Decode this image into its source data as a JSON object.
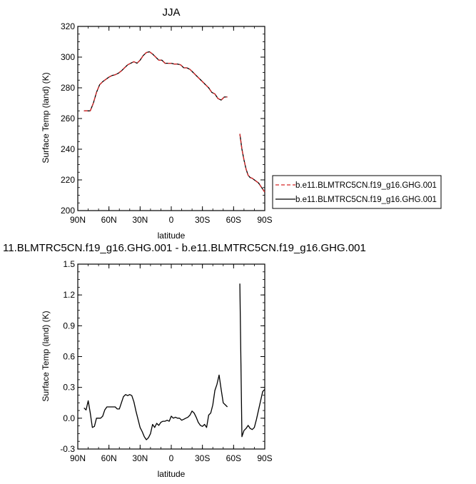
{
  "chart_data": [
    {
      "type": "line",
      "title": "JJA",
      "xlabel": "latitude",
      "ylabel": "Surface Temp (land) (K)",
      "x_direction": "90N on the left to 90S on the right",
      "xlim": [
        90,
        -90
      ],
      "ylim": [
        200,
        320
      ],
      "x_ticks": [
        90,
        60,
        30,
        0,
        -30,
        -60,
        -90
      ],
      "x_tick_labels": [
        "90N",
        "60N",
        "30N",
        "0",
        "30S",
        "60S",
        "90S"
      ],
      "y_ticks": [
        200,
        220,
        240,
        260,
        280,
        300,
        320
      ],
      "y_tick_labels": [
        "200",
        "220",
        "240",
        "260",
        "280",
        "300",
        "320"
      ],
      "legend_position": "right",
      "series": [
        {
          "name": "b.e11.BLMTRC5CN.f19_g16.GHG.001",
          "color": "#d62728",
          "dash": "dashed",
          "segments": [
            {
              "x": [
                84,
                81,
                78,
                75,
                72,
                69,
                66,
                63,
                60,
                57,
                54,
                51,
                48,
                45,
                42,
                39,
                36,
                33,
                30,
                27,
                24,
                21,
                18,
                15,
                12,
                9,
                6,
                3,
                0,
                -3,
                -6,
                -9,
                -12,
                -15,
                -18,
                -21,
                -24,
                -27,
                -30,
                -33,
                -36,
                -39,
                -42,
                -45,
                -48,
                -51,
                -54
              ],
              "y": [
                265,
                265,
                265,
                270,
                277,
                282,
                284,
                285.5,
                287,
                288,
                288.5,
                289.5,
                291,
                293,
                295,
                296,
                297,
                296,
                298,
                301,
                303,
                303.5,
                302,
                300,
                298,
                298,
                296,
                296,
                296,
                295.5,
                295.5,
                295,
                293,
                293,
                292,
                290,
                288,
                286,
                284,
                282,
                280,
                277,
                276,
                273,
                272,
                274,
                274
              ]
            },
            {
              "x": [
                -66,
                -68,
                -70,
                -72,
                -74,
                -76,
                -78,
                -80,
                -82,
                -84,
                -86,
                -88,
                -90
              ],
              "y": [
                250,
                240,
                233,
                227,
                223,
                221.5,
                221,
                220,
                219,
                218,
                216,
                214,
                212
              ]
            }
          ]
        },
        {
          "name": "b.e11.BLMTRC5CN.f19_g16.GHG.001",
          "color": "#000000",
          "dash": "solid",
          "segments": [
            {
              "x": [
                84,
                81,
                78,
                75,
                72,
                69,
                66,
                63,
                60,
                57,
                54,
                51,
                48,
                45,
                42,
                39,
                36,
                33,
                30,
                27,
                24,
                21,
                18,
                15,
                12,
                9,
                6,
                3,
                0,
                -3,
                -6,
                -9,
                -12,
                -15,
                -18,
                -21,
                -24,
                -27,
                -30,
                -33,
                -36,
                -39,
                -42,
                -45,
                -48,
                -51,
                -54
              ],
              "y": [
                265,
                265,
                265,
                270,
                277,
                282,
                284,
                285.5,
                287,
                288,
                288.5,
                289.5,
                291,
                293,
                295,
                296,
                297,
                296,
                298,
                301,
                303,
                303.5,
                302,
                300,
                298,
                298,
                296,
                296,
                296,
                295.5,
                295.5,
                295,
                293,
                293,
                292,
                290,
                288,
                286,
                284,
                282,
                280,
                277,
                276,
                273,
                272,
                274,
                274
              ]
            },
            {
              "x": [
                -66,
                -68,
                -70,
                -72,
                -74,
                -76,
                -78,
                -80,
                -82,
                -84,
                -86,
                -88,
                -90
              ],
              "y": [
                250,
                240,
                233,
                227,
                223,
                221.5,
                221,
                220,
                219,
                218,
                216,
                214,
                212
              ]
            }
          ]
        }
      ]
    },
    {
      "type": "line",
      "title": "11.BLMTRC5CN.f19_g16.GHG.001 - b.e11.BLMTRC5CN.f19_g16.GHG.001",
      "xlabel": "latitude",
      "ylabel": "Surface Temp (land) (K)",
      "xlim": [
        90,
        -90
      ],
      "ylim": [
        -0.3,
        1.5
      ],
      "x_ticks": [
        90,
        60,
        30,
        0,
        -30,
        -60,
        -90
      ],
      "x_tick_labels": [
        "90N",
        "60N",
        "30N",
        "0",
        "30S",
        "60S",
        "90S"
      ],
      "y_ticks": [
        -0.3,
        0.0,
        0.3,
        0.6,
        0.9,
        1.2,
        1.5
      ],
      "y_tick_labels": [
        "-0.3",
        "0.0",
        "0.3",
        "0.6",
        "0.9",
        "1.2",
        "1.5"
      ],
      "series": [
        {
          "color": "#000000",
          "dash": "solid",
          "segments": [
            {
              "x": [
                84,
                82,
                80,
                78,
                76,
                74,
                72,
                70,
                68,
                66,
                64,
                62,
                60,
                58,
                56,
                54,
                52,
                50,
                48,
                46,
                44,
                42,
                40,
                38,
                36,
                34,
                32,
                30,
                28,
                26,
                24,
                22,
                20,
                18,
                16,
                14,
                12,
                10,
                8,
                6,
                4,
                2,
                0,
                -2,
                -4,
                -6,
                -8,
                -10,
                -12,
                -14,
                -16,
                -18,
                -20,
                -22,
                -24,
                -26,
                -28,
                -30,
                -32,
                -34,
                -36,
                -38,
                -40,
                -42,
                -44,
                -46,
                -48,
                -50,
                -52,
                -54
              ],
              "y": [
                0.1,
                0.08,
                0.17,
                0.05,
                -0.09,
                -0.08,
                0.0,
                0.0,
                0.0,
                0.02,
                0.08,
                0.11,
                0.11,
                0.11,
                0.11,
                0.11,
                0.09,
                0.09,
                0.15,
                0.21,
                0.23,
                0.22,
                0.23,
                0.22,
                0.16,
                0.07,
                -0.01,
                -0.09,
                -0.13,
                -0.18,
                -0.21,
                -0.19,
                -0.15,
                -0.06,
                -0.09,
                -0.05,
                -0.07,
                -0.04,
                -0.03,
                -0.03,
                -0.02,
                -0.03,
                0.02,
                0.0,
                0.01,
                0.0,
                0.0,
                -0.02,
                -0.01,
                0.0,
                0.01,
                0.03,
                0.07,
                0.05,
                0.01,
                -0.04,
                -0.07,
                -0.08,
                -0.06,
                -0.09,
                0.03,
                0.05,
                0.13,
                0.27,
                0.33,
                0.42,
                0.28,
                0.15,
                0.13,
                0.11
              ]
            },
            {
              "x": [
                -66,
                -68,
                -70,
                -72,
                -74,
                -76,
                -78,
                -80,
                -82,
                -84,
                -86,
                -88,
                -90
              ],
              "y": [
                1.31,
                -0.18,
                -0.12,
                -0.1,
                -0.07,
                -0.1,
                -0.11,
                -0.09,
                -0.01,
                0.08,
                0.17,
                0.26,
                0.28
              ]
            }
          ]
        }
      ]
    }
  ]
}
